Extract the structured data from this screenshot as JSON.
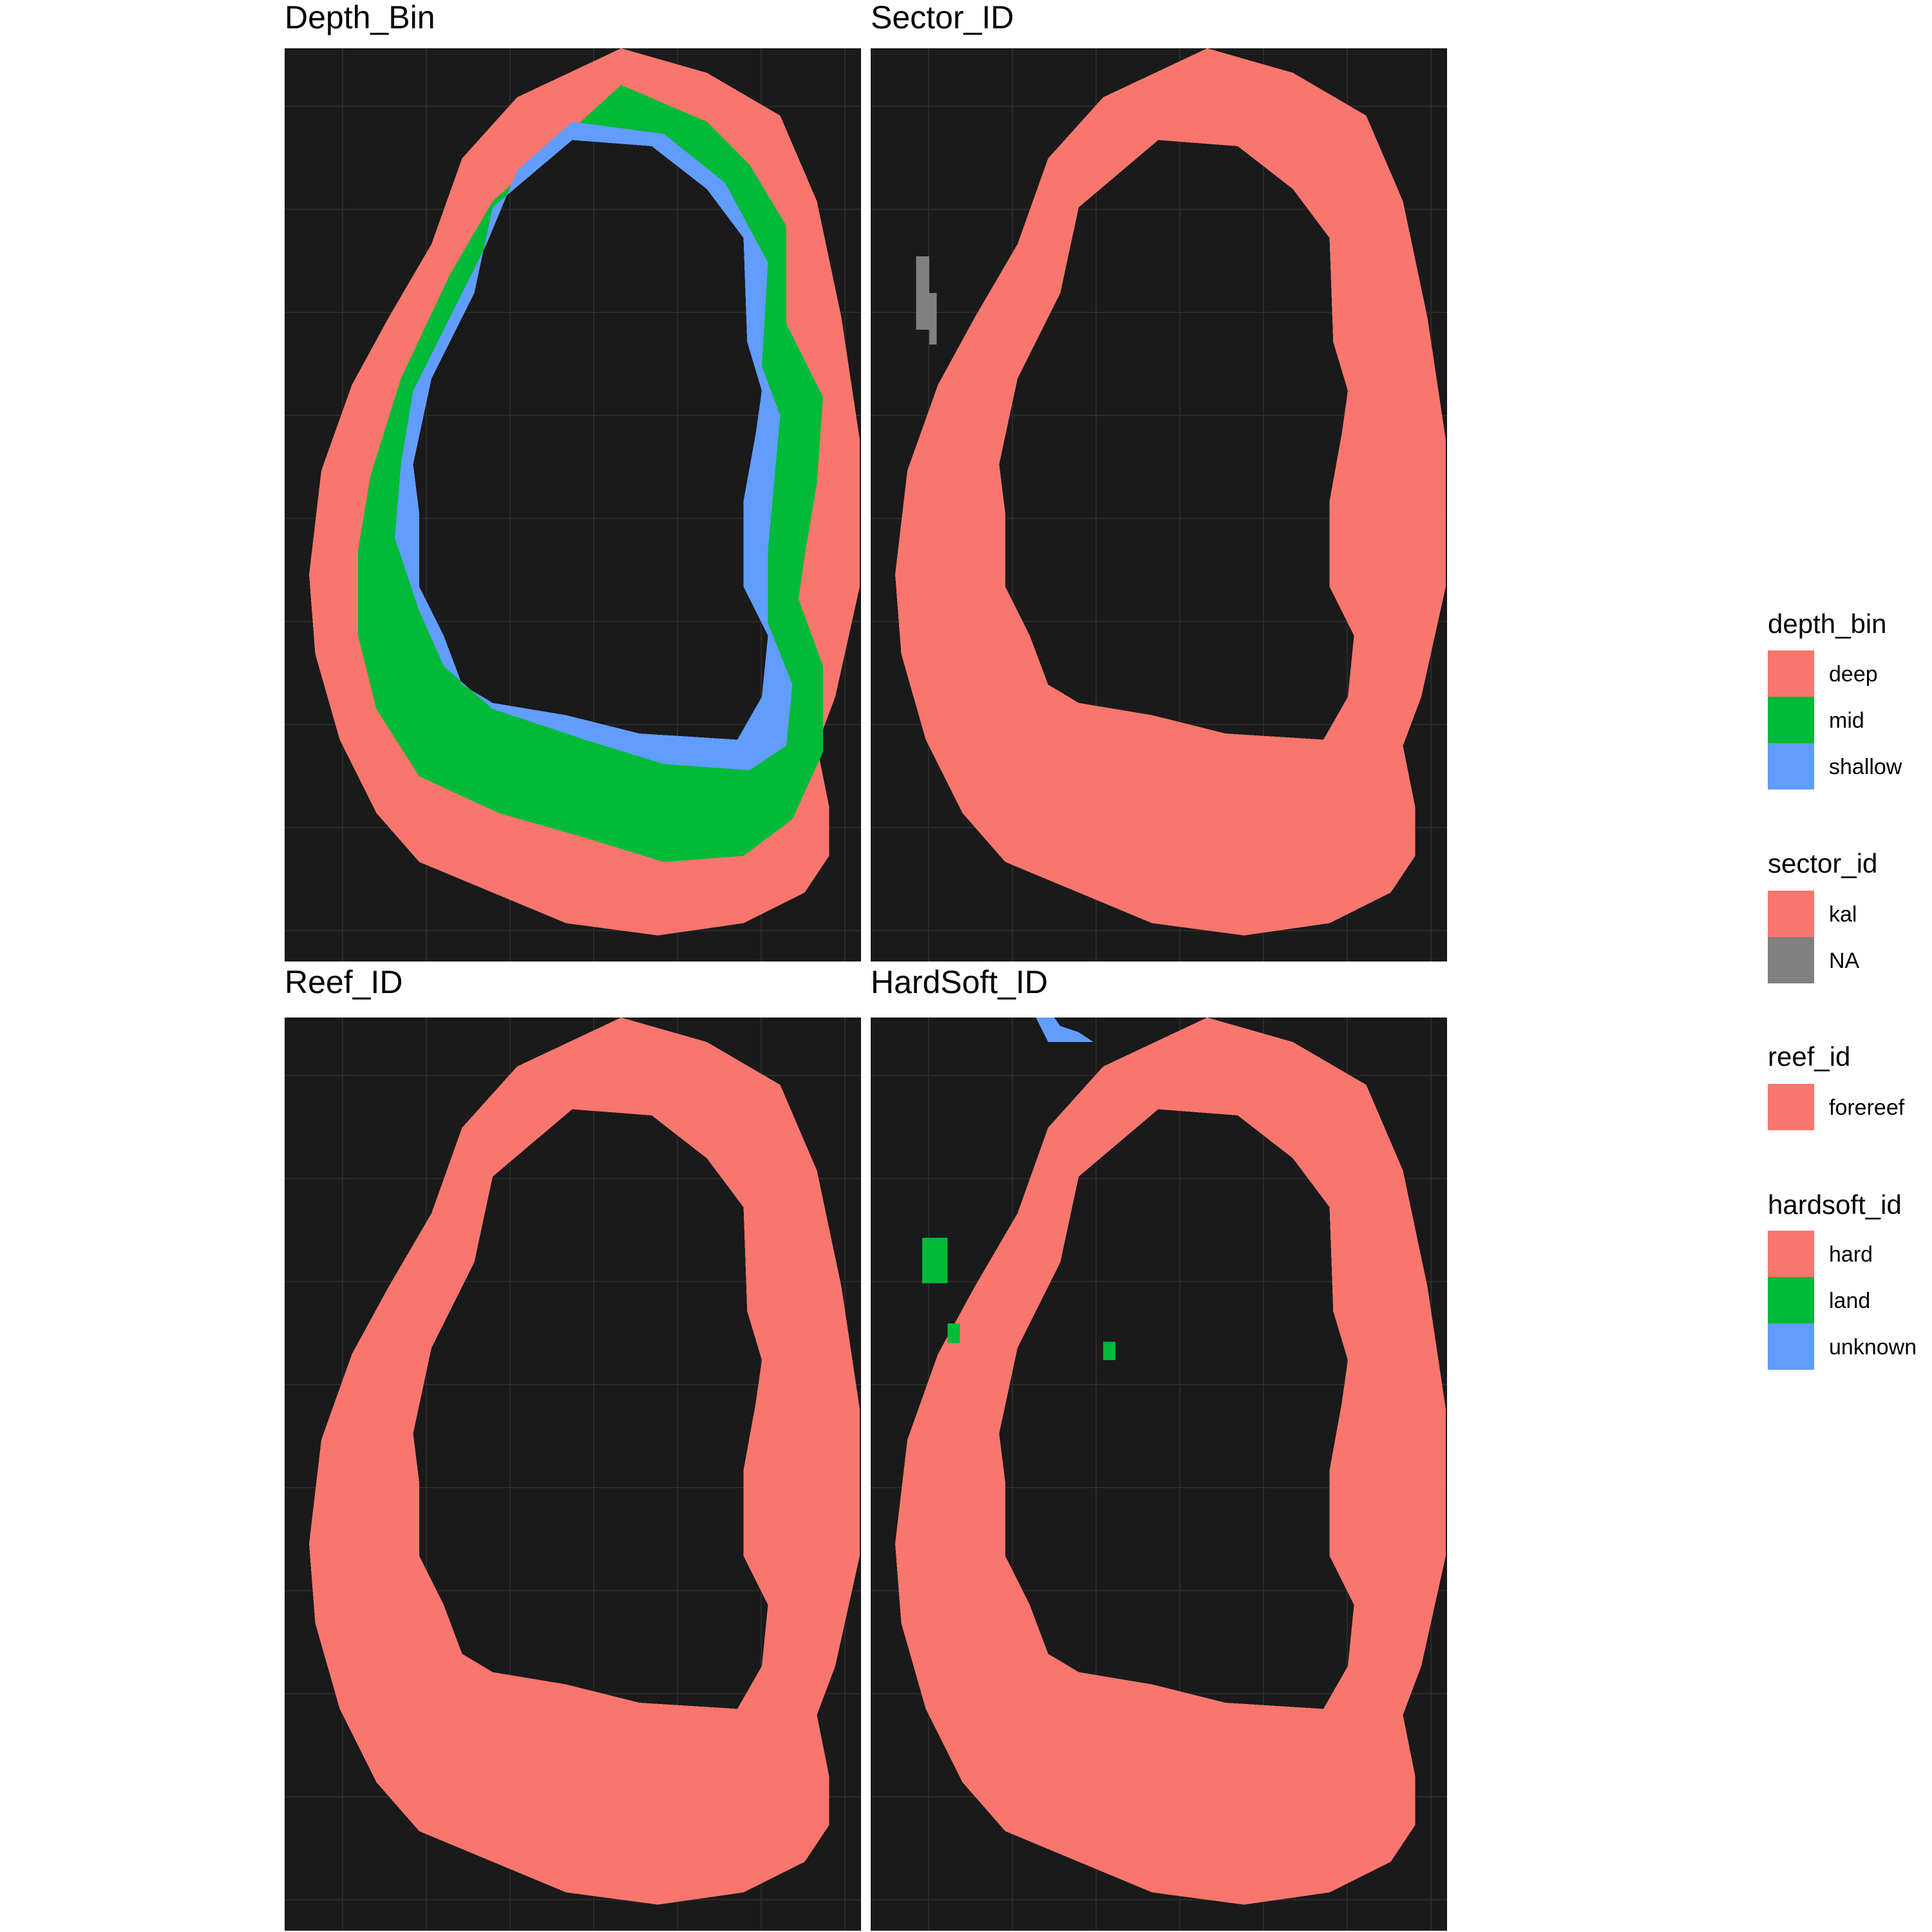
{
  "chart_data": {
    "type": "heatmap",
    "panels": [
      {
        "title": "Depth_Bin",
        "variable": "depth_bin"
      },
      {
        "title": "Sector_ID",
        "variable": "sector_id"
      },
      {
        "title": "Reef_ID",
        "variable": "reef_id"
      },
      {
        "title": "HardSoft_ID",
        "variable": "hardsoft_id"
      }
    ],
    "panel_background": "#1a1a1a",
    "grid_color": "#2b2b2b",
    "grid": true,
    "legend_position": "right",
    "legends": [
      {
        "title": "depth_bin",
        "entries": [
          {
            "label": "deep",
            "color": "#F8766D"
          },
          {
            "label": "mid",
            "color": "#00BA38"
          },
          {
            "label": "shallow",
            "color": "#619CFF"
          }
        ]
      },
      {
        "title": "sector_id",
        "entries": [
          {
            "label": "kal",
            "color": "#F8766D"
          },
          {
            "label": "NA",
            "color": "#808080"
          }
        ]
      },
      {
        "title": "reef_id",
        "entries": [
          {
            "label": "forereef",
            "color": "#F8766D"
          }
        ]
      },
      {
        "title": "hardsoft_id",
        "entries": [
          {
            "label": "hard",
            "color": "#F8766D"
          },
          {
            "label": "land",
            "color": "#00BA38"
          },
          {
            "label": "unknown",
            "color": "#619CFF"
          }
        ]
      }
    ]
  }
}
